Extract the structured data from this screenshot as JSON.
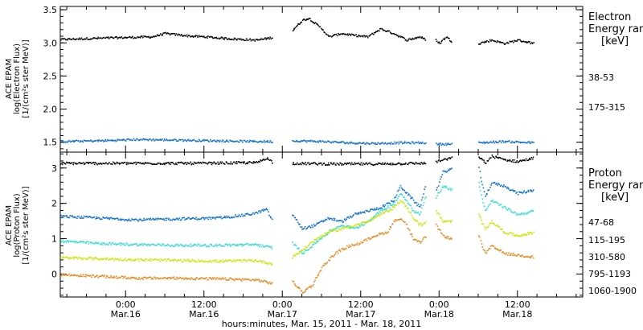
{
  "xlabel": "hours:minutes, Mar. 15, 2011 - Mar. 18, 2011",
  "x_ticks": [
    {
      "hours": 24,
      "time": "0:00",
      "date": "Mar.16"
    },
    {
      "hours": 36,
      "time": "12:00",
      "date": "Mar.16"
    },
    {
      "hours": 48,
      "time": "0:00",
      "date": "Mar.17"
    },
    {
      "hours": 60,
      "time": "12:00",
      "date": "Mar.17"
    },
    {
      "hours": 72,
      "time": "0:00",
      "date": "Mar.18"
    },
    {
      "hours": 84,
      "time": "12:00",
      "date": "Mar.18"
    }
  ],
  "chart_data": [
    {
      "type": "scatter",
      "panel": "top",
      "ylabel": [
        "ACE EPAM",
        "log(Electron Flux)",
        "[1/(cm²s ster MeV)]"
      ],
      "ylim": [
        1.35,
        3.55
      ],
      "ytick_labels": [
        "1.5",
        "2.0",
        "2.5",
        "3.0",
        "3.5"
      ],
      "xlim": [
        14,
        94
      ],
      "x_unit": "hours since 2011-03-15 00:00",
      "legend_title": [
        "Electron",
        "Energy ran",
        "[keV]"
      ],
      "series": [
        {
          "name": "38-53",
          "color": "#000000",
          "segments": [
            {
              "x": [
                14,
                20,
                24,
                28,
                30,
                34,
                36,
                40,
                44,
                46.5
              ],
              "y": [
                3.06,
                3.08,
                3.09,
                3.1,
                3.15,
                3.11,
                3.1,
                3.07,
                3.05,
                3.09
              ]
            },
            {
              "x": [
                49.5,
                51,
                52,
                54,
                55,
                57,
                59,
                61,
                63,
                65,
                67,
                69,
                70
              ],
              "y": [
                3.2,
                3.35,
                3.38,
                3.22,
                3.1,
                3.15,
                3.12,
                3.1,
                3.22,
                3.15,
                3.05,
                3.1,
                3.05
              ]
            },
            {
              "x": [
                71.5,
                72,
                73,
                74
              ],
              "y": [
                3.05,
                3.0,
                3.1,
                3.02
              ]
            },
            {
              "x": [
                78,
                80,
                82,
                84,
                86.5
              ],
              "y": [
                3.0,
                3.05,
                3.0,
                3.05,
                3.0
              ]
            }
          ]
        },
        {
          "name": "175-315",
          "color": "#0a6fd2",
          "segments": [
            {
              "x": [
                14,
                20,
                26,
                32,
                38,
                44,
                46.5
              ],
              "y": [
                1.52,
                1.53,
                1.55,
                1.54,
                1.53,
                1.52,
                1.52
              ]
            },
            {
              "x": [
                49.5,
                54,
                58,
                62,
                66,
                70
              ],
              "y": [
                1.53,
                1.52,
                1.5,
                1.49,
                1.5,
                1.5
              ]
            },
            {
              "x": [
                71.5,
                74
              ],
              "y": [
                1.48,
                1.48
              ]
            },
            {
              "x": [
                78,
                82,
                86.5
              ],
              "y": [
                1.5,
                1.52,
                1.5
              ]
            }
          ]
        }
      ]
    },
    {
      "type": "scatter",
      "panel": "bottom",
      "ylabel": [
        "ACE EPAM",
        "log(Proton Flux)",
        "[1/(cm²s ster MeV)]"
      ],
      "ylim": [
        -0.65,
        3.45
      ],
      "ytick_labels": [
        "0",
        "1",
        "2",
        "3"
      ],
      "xlim": [
        14,
        94
      ],
      "x_unit": "hours since 2011-03-15 00:00",
      "legend_title": [
        "Proton",
        "Energy ran",
        "[keV]"
      ],
      "series": [
        {
          "name": "47-68",
          "color": "#000000",
          "segments": [
            {
              "x": [
                14,
                24,
                36,
                44,
                45.5,
                46.5
              ],
              "y": [
                3.15,
                3.15,
                3.15,
                3.17,
                3.3,
                3.17
              ]
            },
            {
              "x": [
                49.5,
                56,
                62,
                68,
                70
              ],
              "y": [
                3.15,
                3.13,
                3.13,
                3.15,
                3.15
              ]
            },
            {
              "x": [
                71.5,
                74
              ],
              "y": [
                3.2,
                3.3
              ]
            },
            {
              "x": [
                78,
                79,
                80,
                82,
                84,
                86.5
              ],
              "y": [
                3.35,
                3.15,
                3.35,
                3.25,
                3.2,
                3.3
              ]
            }
          ]
        },
        {
          "name": "115-195",
          "color": "#0a6fd2",
          "segments": [
            {
              "x": [
                14,
                20,
                26,
                32,
                38,
                42,
                44,
                45.5,
                46.5
              ],
              "y": [
                1.65,
                1.6,
                1.55,
                1.58,
                1.6,
                1.68,
                1.75,
                1.85,
                1.5
              ]
            },
            {
              "x": [
                49.5,
                51,
                53,
                55,
                57,
                59,
                61,
                63,
                65,
                66,
                67,
                68,
                69,
                70
              ],
              "y": [
                1.7,
                1.3,
                1.4,
                1.6,
                1.5,
                1.7,
                1.8,
                1.9,
                2.1,
                2.5,
                2.3,
                2.1,
                1.9,
                2.6
              ]
            },
            {
              "x": [
                71.5,
                72.5,
                74
              ],
              "y": [
                2.4,
                2.9,
                3.0
              ]
            },
            {
              "x": [
                78,
                79,
                80,
                82,
                84,
                86.5
              ],
              "y": [
                3.0,
                2.2,
                2.6,
                2.5,
                2.3,
                2.4
              ]
            }
          ]
        },
        {
          "name": "310-580",
          "color": "#30dcd6",
          "segments": [
            {
              "x": [
                14,
                20,
                26,
                32,
                38,
                44,
                46.5
              ],
              "y": [
                0.95,
                0.88,
                0.85,
                0.83,
                0.83,
                0.85,
                0.75
              ]
            },
            {
              "x": [
                49.5,
                51,
                53,
                55,
                57,
                59,
                61,
                63,
                65,
                66,
                67,
                68,
                69,
                70
              ],
              "y": [
                0.9,
                0.6,
                0.9,
                1.2,
                1.4,
                1.3,
                1.5,
                1.8,
                2.0,
                2.3,
                2.1,
                1.8,
                1.7,
                2.3
              ]
            },
            {
              "x": [
                71.5,
                72.5,
                74
              ],
              "y": [
                2.2,
                2.5,
                2.4
              ]
            },
            {
              "x": [
                78,
                79,
                80,
                82,
                84,
                86.5
              ],
              "y": [
                2.6,
                1.8,
                2.1,
                1.9,
                1.7,
                1.8
              ]
            }
          ]
        },
        {
          "name": "795-1193",
          "color": "#c8e600",
          "segments": [
            {
              "x": [
                14,
                20,
                26,
                32,
                38,
                44,
                46.5
              ],
              "y": [
                0.48,
                0.45,
                0.42,
                0.4,
                0.38,
                0.4,
                0.3
              ]
            },
            {
              "x": [
                49.5,
                51,
                53,
                55,
                57,
                59,
                61,
                63,
                65,
                66,
                67,
                68,
                69,
                70
              ],
              "y": [
                0.5,
                0.7,
                1.0,
                1.2,
                1.3,
                1.4,
                1.5,
                1.7,
                1.9,
                2.1,
                1.9,
                1.6,
                1.4,
                1.5
              ]
            },
            {
              "x": [
                71.5,
                72.5,
                74
              ],
              "y": [
                1.8,
                1.5,
                1.5
              ]
            },
            {
              "x": [
                78,
                79,
                80,
                82,
                84,
                86.5
              ],
              "y": [
                1.7,
                1.3,
                1.5,
                1.2,
                1.1,
                1.2
              ]
            }
          ]
        },
        {
          "name": "1060-1900",
          "color": "#e8861a",
          "segments": [
            {
              "x": [
                14,
                20,
                26,
                32,
                38,
                44,
                46.5
              ],
              "y": [
                0.0,
                -0.05,
                -0.1,
                -0.1,
                -0.12,
                -0.15,
                -0.25
              ]
            },
            {
              "x": [
                49.5,
                51,
                52.5,
                54,
                56,
                58,
                60,
                62,
                64,
                65,
                66,
                67,
                68,
                69,
                70
              ],
              "y": [
                -0.2,
                -0.5,
                -0.3,
                0.2,
                0.6,
                0.8,
                0.9,
                1.1,
                1.2,
                1.5,
                1.6,
                1.4,
                1.0,
                0.9,
                1.1
              ]
            },
            {
              "x": [
                71.5,
                72.5,
                74
              ],
              "y": [
                1.4,
                1.1,
                1.0
              ]
            },
            {
              "x": [
                78,
                79,
                80,
                82,
                84,
                86.5
              ],
              "y": [
                1.1,
                0.6,
                0.8,
                0.6,
                0.55,
                0.5
              ]
            }
          ]
        }
      ]
    }
  ]
}
